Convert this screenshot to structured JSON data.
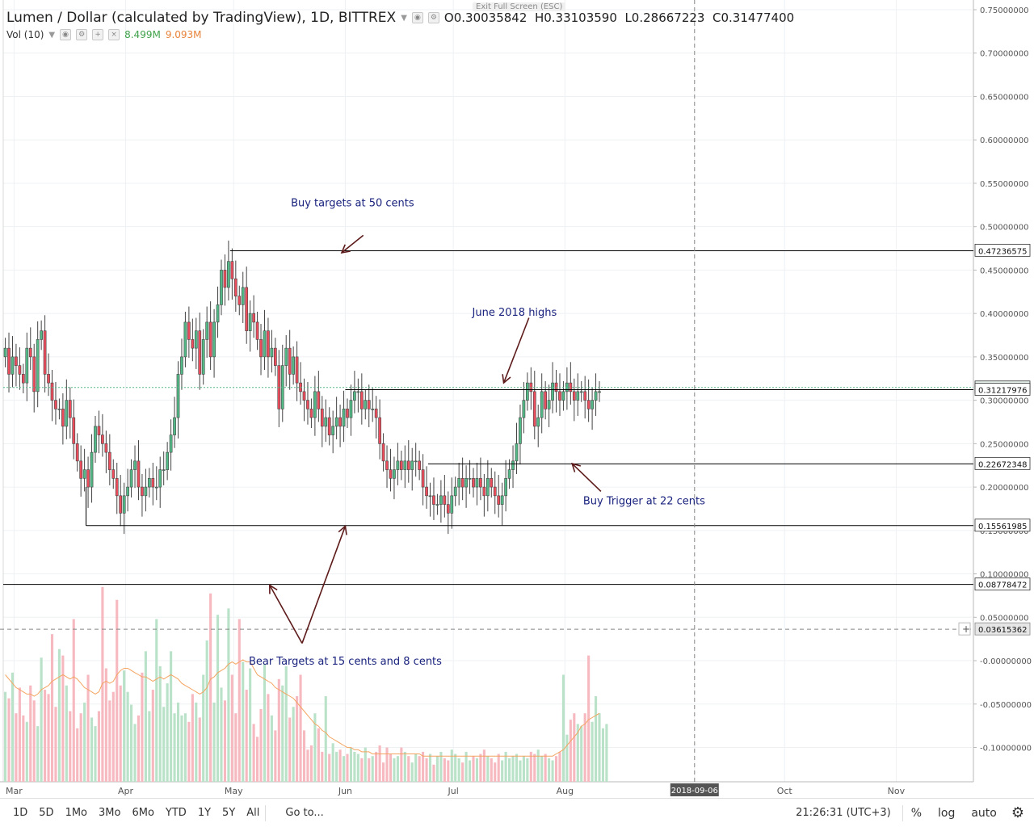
{
  "header": {
    "title": "Lumen / Dollar (calculated by TradingView), 1D, BITTREX",
    "ohlc": {
      "o": "0.30035842",
      "h": "0.33103590",
      "l": "0.28667223",
      "c": "0.31477400"
    },
    "ohlc_keys": {
      "o": "O",
      "h": "H",
      "l": "L",
      "c": "C"
    },
    "volume_label": "Vol (10)",
    "volume_value": "8.499M",
    "volume_ma": "9.093M",
    "exit_fullscreen": "Exit Full Screen (ESC)"
  },
  "colors": {
    "up": "#53b987",
    "down": "#eb4d5c",
    "volume_up": "#b9e2c9",
    "volume_down": "#f7b9c0",
    "volume_ma": "#f4a460",
    "annotation_text": "#1a237e",
    "arrow": "#5d1a1a",
    "grid": "#eef1f4"
  },
  "chart_data": {
    "type": "candlestick",
    "y_axis": {
      "min": -0.12,
      "max": 0.75,
      "step": 0.05,
      "tick_labels": [
        "0.75000000",
        "0.70000000",
        "0.65000000",
        "0.60000000",
        "0.55000000",
        "0.50000000",
        "0.45000000",
        "0.40000000",
        "0.35000000",
        "0.30000000",
        "0.25000000",
        "0.20000000",
        "0.15000000",
        "0.10000000",
        "0.05000000",
        "-0.00000000",
        "-0.05000000",
        "-0.10000000"
      ]
    },
    "x_axis": {
      "tick_labels": [
        "Mar",
        "Apr",
        "May",
        "Jun",
        "Jul",
        "Aug",
        "2018-09-06",
        "Oct",
        "Nov"
      ],
      "tick_dates": [
        "2018-03-01",
        "2018-04-01",
        "2018-05-01",
        "2018-06-01",
        "2018-07-01",
        "2018-08-01",
        "2018-09-06",
        "2018-10-01",
        "2018-11-01"
      ],
      "start_date": "2018-02-26",
      "end_date": "2018-11-22",
      "crosshair_date": "2018-09-06"
    },
    "price_markers": [
      {
        "value": 0.47236575,
        "label": "0.47236575"
      },
      {
        "value": 0.314774,
        "label": "0.31477400"
      },
      {
        "value": 0.31217976,
        "label": "0.31217976"
      },
      {
        "value": 0.22672348,
        "label": "0.22672348"
      },
      {
        "value": 0.15561985,
        "label": "0.15561985"
      },
      {
        "value": 0.08778472,
        "label": "0.08778472"
      }
    ],
    "crosshair_price": {
      "value": 0.03615362,
      "label": "0.03615362"
    },
    "horizontal_lines": [
      {
        "name": "june-2018-high-line",
        "value": 0.4723,
        "from": "2018-04-30",
        "to": "2018-11-22"
      },
      {
        "name": "resistance-line",
        "value": 0.3122,
        "from": "2018-06-01",
        "to": "2018-11-22"
      },
      {
        "name": "buy-trigger-line",
        "value": 0.2267,
        "from": "2018-06-24",
        "to": "2018-11-22"
      },
      {
        "name": "support-line",
        "value": 0.1556,
        "from": "2018-03-21",
        "to": "2018-11-22"
      },
      {
        "name": "bear-target-line",
        "value": 0.0878,
        "from": "2018-02-26",
        "to": "2018-11-22"
      }
    ],
    "annotations": [
      {
        "text": "Buy targets at 50 cents",
        "date": "2018-06-03",
        "value": 0.527
      },
      {
        "text": "June 2018 highs",
        "date": "2018-07-18",
        "value": 0.401
      },
      {
        "text": "Buy Trigger at 22 cents",
        "date": "2018-08-23",
        "value": 0.184
      },
      {
        "text": "Bear Targets at 15 cents and 8 cents",
        "date": "2018-06-01",
        "value": -0.0008
      }
    ],
    "arrows": [
      {
        "from": [
          "2018-06-06",
          0.49
        ],
        "to": [
          "2018-05-31",
          0.47
        ]
      },
      {
        "from": [
          "2018-07-22",
          0.395
        ],
        "to": [
          "2018-07-15",
          0.32
        ]
      },
      {
        "from": [
          "2018-08-11",
          0.195
        ],
        "to": [
          "2018-08-03",
          0.227
        ]
      },
      {
        "from": [
          "2018-05-20",
          0.02
        ],
        "to": [
          "2018-06-01",
          0.155
        ]
      },
      {
        "from": [
          "2018-05-20",
          0.02
        ],
        "to": [
          "2018-05-11",
          0.087
        ]
      }
    ],
    "volume_series": {
      "name": "Vol (10)",
      "values": [
        4.2,
        3.9,
        5.1,
        3.2,
        4.4,
        3.1,
        2.8,
        4.5,
        3.8,
        2.6,
        5.8,
        4.3,
        4.1,
        6.9,
        3.5,
        6.2,
        5.9,
        4.5,
        3.3,
        7.6,
        2.5,
        3.2,
        3.7,
        5.0,
        3.0,
        2.6,
        3.3,
        9.1,
        5.3,
        3.8,
        4.2,
        8.5,
        4.5,
        5.2,
        4.2,
        3.6,
        2.7,
        3.1,
        5.1,
        6.1,
        3.3,
        4.3,
        7.6,
        5.4,
        3.5,
        4.6,
        6.1,
        3.2,
        3.7,
        3.1,
        3.2,
        2.8,
        4.1,
        3.7,
        3.0,
        5.0,
        6.6,
        8.8,
        3.7,
        7.8,
        4.4,
        3.8,
        8.1,
        5.0,
        3.2,
        7.6,
        5.6,
        4.3,
        5.3,
        2.7,
        2.1,
        3.4,
        5.5,
        4.1,
        3.1,
        2.4,
        4.8,
        4.5,
        5.4,
        3.0,
        3.5,
        4.0,
        5.0,
        2.4,
        1.5,
        1.7,
        3.2,
        2.5,
        1.4,
        4.0,
        1.3,
        1.8,
        1.4,
        1.5,
        1.2,
        1.3,
        1.6,
        1.4,
        1.3,
        1.1,
        1.6,
        1.1,
        1.2,
        1.4,
        1.7,
        0.9,
        1.6,
        1.3,
        1.1,
        1.2,
        1.6,
        1.4,
        1.2,
        0.9,
        1.3,
        1.2,
        1.4,
        1.1,
        1.3,
        0.8,
        1.2,
        1.4,
        1.1,
        1.0,
        1.5,
        1.3,
        1.1,
        0.9,
        1.4,
        1.0,
        1.2,
        1.1,
        1.3,
        1.5,
        1.2,
        1.1,
        0.9,
        1.3,
        1.0,
        1.4,
        1.1,
        1.2,
        1.3,
        1.0,
        1.2,
        1.1,
        1.4,
        1.3,
        1.5,
        1.2,
        1.3,
        1.1,
        1.0,
        1.2,
        1.4,
        5.0,
        2.2,
        2.9,
        3.2,
        2.7,
        2.6,
        3.2,
        5.9,
        2.8,
        4.0,
        3.2,
        2.5,
        2.7
      ]
    },
    "volume_ma_series": {
      "name": "Vol (10) MA",
      "values": [
        5.0,
        4.8,
        4.6,
        4.4,
        4.3,
        4.2,
        4.1,
        4.1,
        4.0,
        4.1,
        4.3,
        4.4,
        4.5,
        4.7,
        4.8,
        4.9,
        5.0,
        4.9,
        4.8,
        4.9,
        4.8,
        4.6,
        4.4,
        4.3,
        4.2,
        4.1,
        4.2,
        4.6,
        4.7,
        4.6,
        4.7,
        5.0,
        5.2,
        5.3,
        5.3,
        5.2,
        5.1,
        5.0,
        4.9,
        4.9,
        4.8,
        4.7,
        4.8,
        4.9,
        4.8,
        4.9,
        5.0,
        4.9,
        4.8,
        4.6,
        4.5,
        4.4,
        4.3,
        4.2,
        4.1,
        4.2,
        4.4,
        4.8,
        4.9,
        5.1,
        5.2,
        5.3,
        5.5,
        5.6,
        5.5,
        5.6,
        5.7,
        5.6,
        5.6,
        5.3,
        5.0,
        4.9,
        4.8,
        4.7,
        4.6,
        4.4,
        4.3,
        4.2,
        4.1,
        4.0,
        3.9,
        3.7,
        3.5,
        3.3,
        3.1,
        2.9,
        2.7,
        2.6,
        2.4,
        2.3,
        2.1,
        2.0,
        1.9,
        1.8,
        1.7,
        1.6,
        1.6,
        1.5,
        1.5,
        1.4,
        1.4,
        1.4,
        1.3,
        1.3,
        1.3,
        1.3,
        1.3,
        1.3,
        1.3,
        1.3,
        1.3,
        1.3,
        1.3,
        1.3,
        1.3,
        1.3,
        1.2,
        1.2,
        1.2,
        1.2,
        1.2,
        1.2,
        1.2,
        1.2,
        1.2,
        1.2,
        1.2,
        1.2,
        1.2,
        1.2,
        1.2,
        1.2,
        1.2,
        1.2,
        1.2,
        1.2,
        1.2,
        1.2,
        1.2,
        1.2,
        1.2,
        1.2,
        1.2,
        1.2,
        1.2,
        1.2,
        1.2,
        1.2,
        1.2,
        1.2,
        1.2,
        1.2,
        1.2,
        1.3,
        1.4,
        1.5,
        1.7,
        1.9,
        2.1,
        2.3,
        2.6,
        2.7,
        2.9,
        3.0,
        3.1,
        3.2
      ]
    }
  },
  "bottom_toolbar": {
    "ranges": [
      "1D",
      "5D",
      "1Mo",
      "3Mo",
      "6Mo",
      "YTD",
      "1Y",
      "5Y",
      "All"
    ],
    "goto": "Go to...",
    "clock": "21:26:31 (UTC+3)",
    "percent": "%",
    "log": "log",
    "auto": "auto"
  }
}
